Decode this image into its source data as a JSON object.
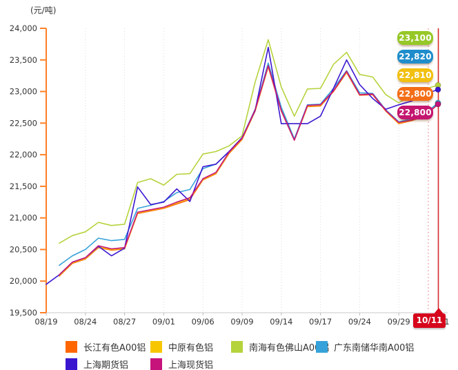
{
  "chart_data": {
    "type": "line",
    "unit_label": "(元/吨)",
    "ylim": [
      19500,
      24000
    ],
    "y_tick_step": 500,
    "y_tick_labels": [
      "24,000",
      "23,500",
      "23,000",
      "22,500",
      "22,000",
      "21,500",
      "21,000",
      "20,500",
      "20,000",
      "19,500"
    ],
    "grid": "vertical-dotted-gridlines-only",
    "legend_position": "bottom",
    "x_dates": [
      "08/19",
      "08/20",
      "08/23",
      "08/24",
      "08/25",
      "08/26",
      "08/27",
      "08/30",
      "08/31",
      "09/01",
      "09/02",
      "09/03",
      "09/06",
      "09/07",
      "09/08",
      "09/09",
      "09/10",
      "09/13",
      "09/14",
      "09/15",
      "09/16",
      "09/17",
      "09/22",
      "09/23",
      "09/24",
      "09/27",
      "09/28",
      "09/29",
      "09/30",
      "10/08",
      "10/11"
    ],
    "x_tick_indices": [
      0,
      3,
      6,
      9,
      12,
      15,
      18,
      21,
      24,
      27,
      30
    ],
    "x_tick_labels": [
      "08/19",
      "08/24",
      "08/27",
      "09/01",
      "09/06",
      "09/09",
      "09/14",
      "09/17",
      "09/24",
      "09/29",
      "10/11"
    ],
    "series": [
      {
        "name": "长江有色A00铝",
        "color": "#FF6600",
        "values": [
          null,
          20080,
          20280,
          20350,
          20530,
          20490,
          20510,
          21070,
          21110,
          21150,
          21220,
          21290,
          21600,
          21700,
          22020,
          22240,
          22690,
          23390,
          22690,
          22230,
          22760,
          22770,
          23000,
          23300,
          22940,
          22950,
          22690,
          22490,
          22540,
          22610,
          22800
        ]
      },
      {
        "name": "中原有色铝",
        "color": "#F7C600",
        "values": [
          null,
          20090,
          20290,
          20360,
          20540,
          20500,
          20520,
          21080,
          21120,
          21160,
          21240,
          21310,
          21610,
          21710,
          22030,
          22250,
          22700,
          23400,
          22710,
          22250,
          22770,
          22780,
          23010,
          23310,
          22950,
          22960,
          22700,
          22500,
          22550,
          22620,
          22810
        ]
      },
      {
        "name": "南海有色佛山A00铝",
        "color": "#B5D33C",
        "values": [
          null,
          20600,
          20720,
          20780,
          20930,
          20880,
          20900,
          21560,
          21620,
          21520,
          21690,
          21700,
          22010,
          22050,
          22140,
          22300,
          23150,
          23820,
          23070,
          22610,
          23040,
          23050,
          23430,
          23620,
          23270,
          23230,
          22950,
          22820,
          22950,
          23040,
          23100
        ]
      },
      {
        "name": "广东南储华南A00铝",
        "color": "#36A2D9",
        "values": [
          null,
          20250,
          20400,
          20500,
          20680,
          20640,
          20660,
          21150,
          21200,
          21260,
          21400,
          21450,
          21780,
          21850,
          22050,
          22270,
          22720,
          23450,
          22750,
          22250,
          22790,
          22800,
          23050,
          23330,
          22980,
          22970,
          22710,
          22520,
          22570,
          22650,
          22820
        ]
      },
      {
        "name": "上海期货铝",
        "color": "#3B16CF",
        "values": [
          19950,
          20100,
          20300,
          20370,
          20550,
          20400,
          20520,
          21490,
          21210,
          21250,
          21460,
          21260,
          21810,
          21850,
          22050,
          22270,
          22700,
          23700,
          22490,
          22490,
          22490,
          22610,
          23050,
          23500,
          23110,
          22890,
          22720,
          22790,
          22850,
          22960,
          23030
        ]
      },
      {
        "name": "上海现货铝",
        "color": "#C6137C",
        "values": [
          null,
          20100,
          20300,
          20370,
          20560,
          20510,
          20530,
          21090,
          21130,
          21170,
          21250,
          21320,
          21620,
          21720,
          22040,
          22260,
          22710,
          23410,
          22700,
          22230,
          22780,
          22790,
          23010,
          23320,
          22950,
          22960,
          22700,
          22510,
          22550,
          22620,
          22800
        ]
      }
    ],
    "end_value_badges": [
      {
        "text": "23,100",
        "color": "#96C828"
      },
      {
        "text": "22,820",
        "color": "#1F8DCB"
      },
      {
        "text": "22,810",
        "color": "#F2C011"
      },
      {
        "text": "22,800",
        "color": "#F36E17"
      },
      {
        "text": "22,800",
        "color": "#C4156F"
      }
    ],
    "highlight_date_badge": {
      "text": "10/11",
      "color": "#D6061C"
    },
    "axis_colors": {
      "y_axis": "#FF8026",
      "x_axis": "#C9C9C9",
      "gridline": "#DCDCDC",
      "crosshair_red": "#D42A2A"
    }
  }
}
